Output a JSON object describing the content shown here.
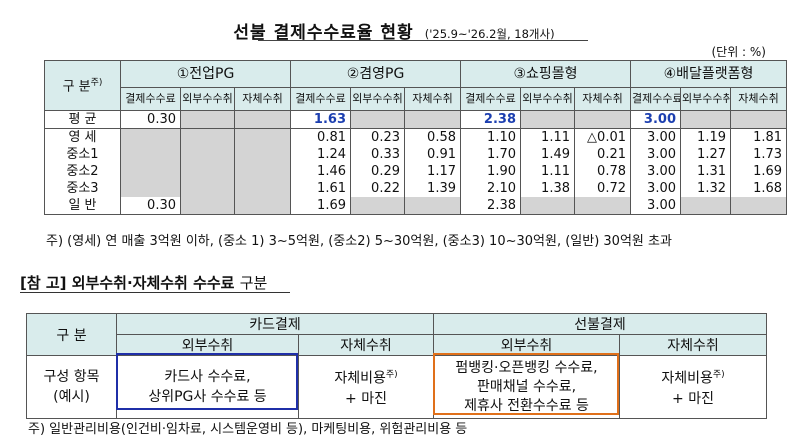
{
  "title": {
    "main": "선불 결제수수료율 현황",
    "sub": "('25.9~'26.2월, 18개사)"
  },
  "unit": "(단위 : %)",
  "table1": {
    "category_header": "구 분",
    "category_note": "주)",
    "groups": [
      "①전업PG",
      "②겸영PG",
      "③쇼핑몰형",
      "④배달플랫폼형"
    ],
    "subheaders": [
      "결제수수료",
      "외부수수취",
      "자체수취"
    ],
    "rows": [
      {
        "label": "평 균",
        "values": [
          "0.30",
          "",
          "",
          "1.63",
          "",
          "",
          "2.38",
          "",
          "",
          "3.00",
          "",
          ""
        ]
      },
      {
        "label": "영 세",
        "values": [
          "",
          "",
          "",
          "0.81",
          "0.23",
          "0.58",
          "1.10",
          "1.11",
          "△0.01",
          "3.00",
          "1.19",
          "1.81"
        ]
      },
      {
        "label": "중소1",
        "values": [
          "",
          "",
          "",
          "1.24",
          "0.33",
          "0.91",
          "1.70",
          "1.49",
          "0.21",
          "3.00",
          "1.27",
          "1.73"
        ]
      },
      {
        "label": "중소2",
        "values": [
          "",
          "",
          "",
          "1.46",
          "0.29",
          "1.17",
          "1.90",
          "1.11",
          "0.78",
          "3.00",
          "1.31",
          "1.69"
        ]
      },
      {
        "label": "중소3",
        "values": [
          "",
          "",
          "",
          "1.61",
          "0.22",
          "1.39",
          "2.10",
          "1.38",
          "0.72",
          "3.00",
          "1.32",
          "1.68"
        ]
      },
      {
        "label": "일 반",
        "values": [
          "0.30",
          "",
          "",
          "1.69",
          "",
          "",
          "2.38",
          "",
          "",
          "3.00",
          "",
          ""
        ]
      }
    ],
    "note": "주) (영세) 연 매출 3억원 이하, (중소 1) 3~5억원, (중소2) 5~30억원, (중소3) 10~30억원, (일반) 30억원 초과"
  },
  "reference": {
    "title": "[참 고] 외부수취·자체수취 수수료",
    "title_tail": "구분",
    "table": {
      "category_header": "구 분",
      "groups": [
        "카드결제",
        "선불결제"
      ],
      "subheaders": [
        "외부수취",
        "자체수취",
        "외부수취",
        "자체수취"
      ],
      "row_label": [
        "구성 항목",
        "(예시)"
      ],
      "cells": [
        [
          "카드사 수수료,",
          "상위PG사 수수료 등"
        ],
        [
          "자체비용",
          "+ 마진"
        ],
        [
          "펌뱅킹·오픈뱅킹 수수료,",
          "판매채널 수수료,",
          "제휴사 전환수수료 등"
        ],
        [
          "자체비용",
          "+ 마진"
        ]
      ],
      "cost_note": "주)"
    },
    "note": "주) 일반관리비용(인건비·임차료, 시스템운영비 등), 마케팅비용, 위험관리비용 등"
  }
}
